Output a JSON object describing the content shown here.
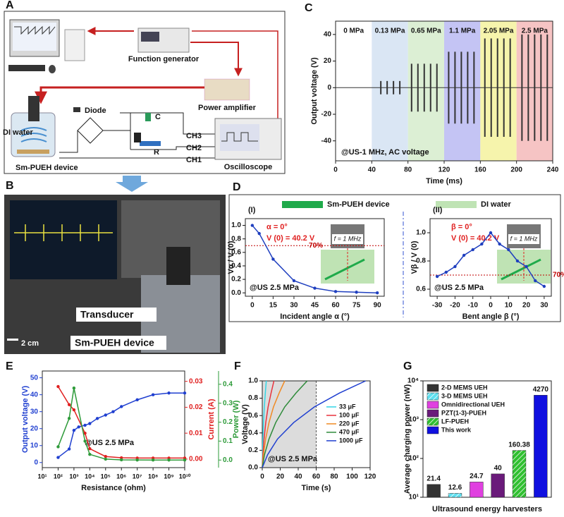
{
  "schematic": {
    "panel": "A",
    "function_generator": "Function generator",
    "power_amplifier": "Power amplifier",
    "diode": "Diode",
    "capacitor": "C",
    "resistor": "R",
    "channels": [
      "CH3",
      "CH2",
      "CH1"
    ],
    "medium": "DI water",
    "device": "Sm-PUEH device",
    "oscilloscope": "Oscilloscope"
  },
  "photo": {
    "panel": "B",
    "transducer": "Transducer",
    "device": "Sm-PUEH device",
    "scale_bar": "2 cm"
  },
  "chart_data": [
    {
      "panel": "C",
      "type": "pulse",
      "ylabel": "Output voltage (V)",
      "xlabel": "Time (ms)",
      "annotation": "@US-1 MHz, AC voltage",
      "xlim": [
        0,
        240
      ],
      "xticks": [
        0,
        40,
        80,
        120,
        160,
        200,
        240
      ],
      "ylim": [
        -55,
        50
      ],
      "yticks": [
        -40,
        -20,
        0,
        20,
        40
      ],
      "color": "#333333",
      "regions": [
        {
          "label": "0 MPa",
          "range": [
            0,
            40
          ],
          "color": "#ffffff"
        },
        {
          "label": "0.13 MPa",
          "range": [
            40,
            80
          ],
          "color": "#dae6f4"
        },
        {
          "label": "0.65 MPa",
          "range": [
            80,
            120
          ],
          "color": "#dcefd4"
        },
        {
          "label": "1.1 MPa",
          "range": [
            120,
            160
          ],
          "color": "#c4c4f4"
        },
        {
          "label": "2.05 MPa",
          "range": [
            160,
            200
          ],
          "color": "#f6f4ac"
        },
        {
          "label": "2.5 MPa",
          "range": [
            200,
            240
          ],
          "color": "#f6c4c4"
        }
      ],
      "x": [
        50,
        57,
        64,
        71,
        84,
        91,
        98,
        105,
        112,
        125,
        132,
        139,
        146,
        153,
        165,
        172,
        179,
        186,
        193,
        206,
        213,
        220,
        227,
        234
      ],
      "values": [
        5,
        5,
        5,
        5,
        18,
        18,
        18,
        18,
        18,
        27,
        27,
        27,
        27,
        27,
        37,
        37,
        37,
        37,
        37,
        40,
        40,
        40,
        40,
        40
      ]
    },
    {
      "panel": "D",
      "title": "(I)",
      "type": "line",
      "markers": true,
      "key": [
        {
          "name": "Sm-PUEH device",
          "color": "#1faa4a"
        },
        {
          "name": "DI water",
          "color": "#bfe3b4"
        }
      ],
      "annotations": [
        "α = 0°",
        "V (0) = 40.2 V",
        "@US 2.5 MPa"
      ],
      "inset_label": "f = 1 MHz",
      "ylabel": "Vα / V (0)",
      "xlabel": "Incident angle α (°)",
      "xlim": [
        -5,
        95
      ],
      "xticks": [
        0,
        15,
        30,
        45,
        60,
        75,
        90
      ],
      "ylim": [
        -0.05,
        1.1
      ],
      "yticks": [
        {
          "value": 0,
          "label": "0.0"
        },
        0.2,
        0.4,
        0.6,
        0.8,
        {
          "value": 1,
          "label": "1.0"
        }
      ],
      "reference": {
        "value": 0.7,
        "label": "70%"
      },
      "color": "#1f3fbf",
      "x": [
        0,
        5,
        15,
        30,
        45,
        60,
        75,
        90
      ],
      "values": [
        1.0,
        0.88,
        0.5,
        0.18,
        0.07,
        0.02,
        0.01,
        0.0
      ]
    },
    {
      "title": "(II)",
      "type": "line",
      "markers": true,
      "annotations": [
        "β = 0°",
        "V (0) = 40.2 V",
        "@US 2.5 MPa"
      ],
      "inset_label": "f = 1 MHz",
      "ylabel": "Vβ / V (0)",
      "xlabel": "Bent angle β (°)",
      "xlim": [
        -34,
        34
      ],
      "xticks": [
        -30,
        -20,
        -10,
        0,
        10,
        20,
        30
      ],
      "ylim": [
        0.55,
        1.1
      ],
      "yticks": [
        0.6,
        0.8,
        {
          "value": 1,
          "label": "1.0"
        }
      ],
      "reference": {
        "value": 0.7,
        "label": "70%"
      },
      "color": "#1f3fbf",
      "x": [
        -30,
        -25,
        -20,
        -15,
        -10,
        -5,
        0,
        5,
        10,
        15,
        20,
        25,
        30
      ],
      "values": [
        0.69,
        0.72,
        0.76,
        0.84,
        0.88,
        0.92,
        1.0,
        0.92,
        0.88,
        0.8,
        0.76,
        0.66,
        0.62
      ]
    },
    {
      "panel": "E",
      "type": "line",
      "markers": true,
      "xlog": true,
      "xlabel": "Resistance (ohm)",
      "ylabel": "Output voltage (V)",
      "y2label": "Current (A)",
      "y3label": "Power (W)",
      "annotation": "@US 2.5 MPa",
      "xlim": [
        10,
        10000000000
      ],
      "xticks": [
        {
          "value": 10,
          "label": "10¹"
        },
        {
          "value": 100,
          "label": "10²"
        },
        {
          "value": 1000,
          "label": "10³"
        },
        {
          "value": 10000,
          "label": "10⁴"
        },
        {
          "value": 100000,
          "label": "10⁵"
        },
        {
          "value": 1000000,
          "label": "10⁶"
        },
        {
          "value": 10000000,
          "label": "10⁷"
        },
        {
          "value": 100000000,
          "label": "10⁸"
        },
        {
          "value": 1000000000,
          "label": "10⁹"
        },
        {
          "value": 10000000000,
          "label": "10¹⁰"
        }
      ],
      "ylim": [
        -3,
        54
      ],
      "yticks": [
        0,
        10,
        20,
        30,
        40,
        50
      ],
      "y2lim": [
        -0.0033,
        0.034
      ],
      "y2ticks": [
        {
          "value": 0,
          "label": "0.00"
        },
        0.01,
        0.02,
        0.03
      ],
      "y3lim": [
        -0.04,
        0.47
      ],
      "y3ticks": [
        {
          "value": 0,
          "label": "0.0"
        },
        0.1,
        0.2,
        0.3,
        0.4
      ],
      "series": [
        {
          "color": "#1f3fd0",
          "axis": "y",
          "x": [
            100,
            500,
            1000,
            2000,
            5000,
            10000,
            30000,
            100000,
            300000,
            1000000,
            10000000,
            100000000,
            1000000000,
            10000000000
          ],
          "values": [
            3,
            8,
            19,
            21,
            22,
            23,
            26,
            28,
            30,
            33,
            37,
            40,
            41,
            41
          ]
        },
        {
          "color": "#e02020",
          "axis": "y2",
          "x": [
            100,
            500,
            1000,
            5000,
            10000,
            100000,
            1000000,
            10000000,
            100000000,
            1000000000,
            10000000000
          ],
          "values": [
            0.028,
            0.021,
            0.019,
            0.01,
            0.004,
            0.001,
            0.0005,
            0.0004,
            0.0004,
            0.0004,
            0.0004
          ]
        },
        {
          "color": "#2e9b3a",
          "axis": "y3",
          "x": [
            100,
            500,
            1000,
            5000,
            10000,
            100000,
            1000000,
            10000000,
            100000000,
            1000000000,
            10000000000
          ],
          "values": [
            0.07,
            0.22,
            0.38,
            0.1,
            0.03,
            0.005,
            0.001,
            0.0003,
            0.0001,
            5e-05,
            1e-05
          ]
        }
      ]
    },
    {
      "panel": "F",
      "type": "line",
      "legend": "right",
      "xlabel": "Time (s)",
      "ylabel": "Voltage (V)",
      "annotation": "@US 2.5 MPa",
      "shade": [
        0,
        60
      ],
      "xlim": [
        0,
        120
      ],
      "xticks": [
        0,
        20,
        40,
        60,
        80,
        100,
        120
      ],
      "ylim": [
        0,
        1
      ],
      "yticks": [
        {
          "value": 0,
          "label": "0.0"
        },
        0.2,
        0.4,
        0.6,
        0.8,
        {
          "value": 1,
          "label": "1.0"
        }
      ],
      "series": [
        {
          "name": "33 μF",
          "color": "#33d6e6",
          "x": [
            0,
            0.2,
            0.7,
            1.4,
            2.3,
            3.4,
            4.5
          ],
          "values": [
            0,
            0.15,
            0.33,
            0.52,
            0.7,
            0.86,
            1.0
          ]
        },
        {
          "name": "100 μF",
          "color": "#e8323c",
          "x": [
            0,
            0.7,
            2,
            3.9,
            6.5,
            9.8,
            13
          ],
          "values": [
            0,
            0.15,
            0.33,
            0.52,
            0.7,
            0.86,
            1.0
          ]
        },
        {
          "name": "220 μF",
          "color": "#f08a24",
          "x": [
            0,
            1.3,
            3.8,
            7.5,
            12.5,
            18.8,
            25
          ],
          "values": [
            0,
            0.15,
            0.33,
            0.52,
            0.7,
            0.86,
            1.0
          ]
        },
        {
          "name": "470 μF",
          "color": "#2e8b3a",
          "x": [
            0,
            2.5,
            7.5,
            15,
            25,
            37.5,
            50
          ],
          "values": [
            0,
            0.15,
            0.33,
            0.52,
            0.7,
            0.86,
            1.0
          ]
        },
        {
          "name": "1000 μF",
          "color": "#1f3fd0",
          "x": [
            0,
            6,
            17,
            35,
            58,
            86,
            115
          ],
          "values": [
            0,
            0.15,
            0.33,
            0.52,
            0.7,
            0.86,
            1.0
          ]
        }
      ]
    },
    {
      "panel": "G",
      "type": "bar",
      "ylog": true,
      "legend": "upper left",
      "xlabel": "Ultrasound energy harvesters",
      "ylabel": "Average charging power (nW)",
      "categories": [
        "2-D MEMS UEH",
        "3-D MEMS UEH",
        "Omnidirectional UEH",
        "PZT(1-3)-PUEH",
        "LF-PUEH",
        "This work"
      ],
      "values": [
        21.4,
        12.6,
        24.7,
        40,
        160.38,
        4270
      ],
      "colors": [
        "#333333",
        "#5ee0f0",
        "#e040e0",
        "#6a1a7a",
        "#30c030",
        "#1010e0"
      ],
      "hatch": [
        false,
        true,
        false,
        false,
        true,
        false
      ],
      "ylim": [
        10,
        10000
      ],
      "yticks": [
        {
          "value": 10,
          "label": "10¹"
        },
        {
          "value": 100,
          "label": "10²"
        },
        {
          "value": 1000,
          "label": "10³"
        },
        {
          "value": 10000,
          "label": "10⁴"
        }
      ]
    }
  ]
}
